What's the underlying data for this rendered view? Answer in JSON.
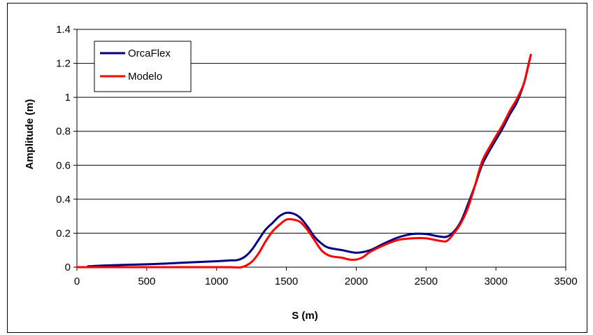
{
  "chart_data": {
    "type": "line",
    "xlabel": "S (m)",
    "ylabel": "Amplitude (m)",
    "xlim": [
      0,
      3500
    ],
    "ylim": [
      0,
      1.4
    ],
    "xticks": [
      0,
      500,
      1000,
      1500,
      2000,
      2500,
      3000,
      3500
    ],
    "yticks": [
      0,
      0.2,
      0.4,
      0.6,
      0.8,
      1,
      1.2,
      1.4
    ],
    "xtick_labels": [
      "0",
      "500",
      "1000",
      "1500",
      "2000",
      "2500",
      "3000",
      "3500"
    ],
    "ytick_labels": [
      "0",
      "0.2",
      "0.4",
      "0.6",
      "0.8",
      "1",
      "1.2",
      "1.4"
    ],
    "grid": "horizontal",
    "legend_position": "top-left",
    "series": [
      {
        "name": "OrcaFlex",
        "color": "#000080",
        "x": [
          80,
          200,
          400,
          600,
          800,
          1000,
          1100,
          1150,
          1200,
          1250,
          1300,
          1350,
          1400,
          1450,
          1500,
          1550,
          1600,
          1650,
          1700,
          1750,
          1800,
          1900,
          2000,
          2100,
          2200,
          2300,
          2400,
          2500,
          2600,
          2650,
          2700,
          2750,
          2800,
          2850,
          2900,
          2950,
          3000,
          3050,
          3100,
          3150,
          3200,
          3230,
          3250
        ],
        "y": [
          0.005,
          0.01,
          0.015,
          0.02,
          0.028,
          0.035,
          0.04,
          0.042,
          0.06,
          0.1,
          0.16,
          0.22,
          0.26,
          0.3,
          0.32,
          0.315,
          0.29,
          0.24,
          0.18,
          0.14,
          0.115,
          0.1,
          0.085,
          0.1,
          0.14,
          0.175,
          0.195,
          0.195,
          0.18,
          0.18,
          0.21,
          0.27,
          0.37,
          0.48,
          0.6,
          0.68,
          0.75,
          0.82,
          0.9,
          0.97,
          1.08,
          1.18,
          1.25
        ]
      },
      {
        "name": "Modelo",
        "color": "#ff0000",
        "x": [
          0,
          200,
          400,
          600,
          800,
          1000,
          1100,
          1180,
          1250,
          1300,
          1350,
          1400,
          1450,
          1500,
          1550,
          1600,
          1650,
          1700,
          1750,
          1800,
          1850,
          1900,
          1950,
          2000,
          2050,
          2100,
          2200,
          2300,
          2400,
          2500,
          2600,
          2650,
          2700,
          2750,
          2800,
          2850,
          2900,
          2950,
          3000,
          3050,
          3100,
          3150,
          3200,
          3230,
          3250
        ],
        "y": [
          0,
          0,
          0,
          0,
          0,
          0,
          0,
          0,
          0.03,
          0.08,
          0.15,
          0.21,
          0.25,
          0.28,
          0.28,
          0.265,
          0.22,
          0.16,
          0.1,
          0.07,
          0.06,
          0.055,
          0.045,
          0.045,
          0.06,
          0.09,
          0.13,
          0.16,
          0.17,
          0.17,
          0.155,
          0.155,
          0.2,
          0.26,
          0.35,
          0.48,
          0.62,
          0.7,
          0.77,
          0.84,
          0.92,
          0.99,
          1.08,
          1.18,
          1.25
        ]
      }
    ]
  }
}
